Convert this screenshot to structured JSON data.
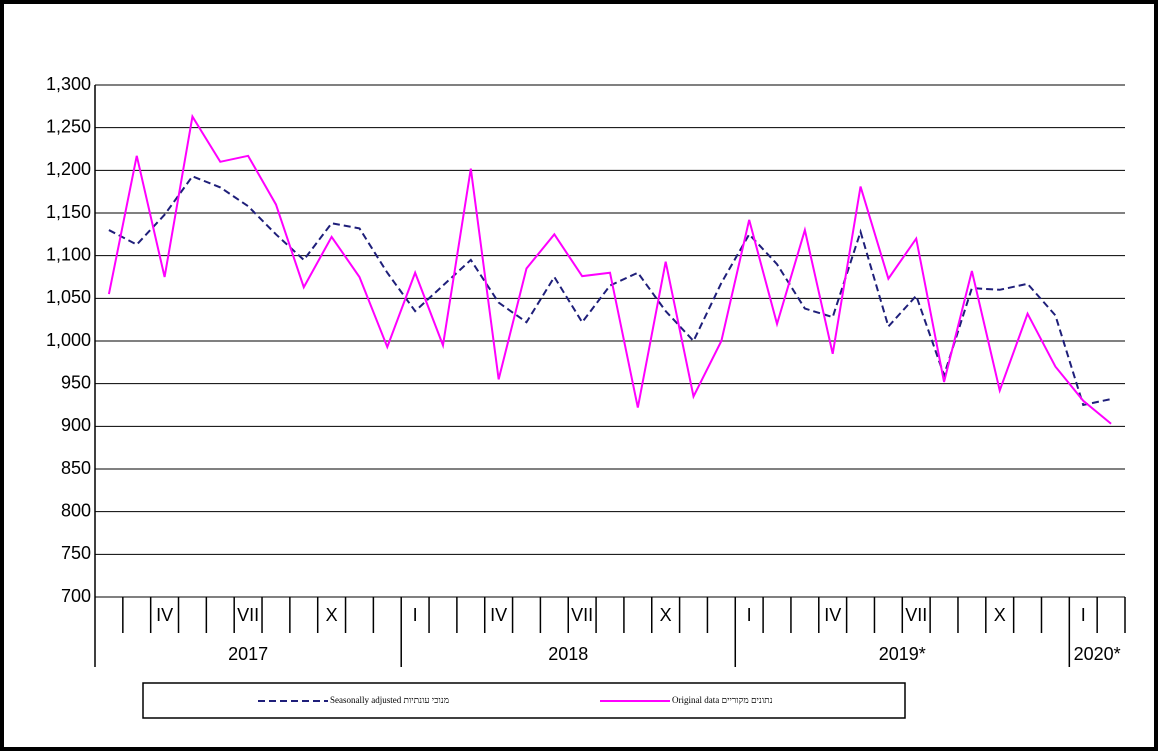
{
  "chart_data": {
    "type": "line",
    "categories": [
      null,
      null,
      "IV",
      null,
      null,
      "VII",
      null,
      null,
      "X",
      null,
      null,
      "I",
      null,
      null,
      "IV",
      null,
      null,
      "VII",
      null,
      null,
      "X",
      null,
      null,
      "I",
      null,
      null,
      "IV",
      null,
      null,
      "VII",
      null,
      null,
      "X",
      null,
      null,
      "I",
      null
    ],
    "years": [
      "2017",
      "2018",
      "2019*",
      "2020*"
    ],
    "series": [
      {
        "name": "Seasonally adjusted מנוכי עונתיות",
        "color": "#1f1f7a",
        "dash": true,
        "values": [
          1130,
          1113,
          1148,
          1193,
          1180,
          1158,
          1125,
          1095,
          1138,
          1132,
          1080,
          1035,
          1065,
          1095,
          1045,
          1022,
          1075,
          1022,
          1065,
          1080,
          1035,
          1000,
          1068,
          1125,
          1090,
          1038,
          1028,
          1128,
          1017,
          1053,
          960,
          1062,
          1060,
          1067,
          1030,
          925,
          932
        ]
      },
      {
        "name": "Original data נתונים מקוריים",
        "color": "#ff00ff",
        "dash": false,
        "values": [
          1055,
          1217,
          1075,
          1263,
          1210,
          1217,
          1160,
          1063,
          1122,
          1075,
          993,
          1080,
          995,
          1202,
          955,
          1085,
          1125,
          1076,
          1080,
          922,
          1093,
          935,
          1000,
          1142,
          1020,
          1130,
          985,
          1181,
          1073,
          1120,
          952,
          1082,
          942,
          1032,
          970,
          930,
          903
        ]
      }
    ],
    "ylim": [
      700,
      1300
    ],
    "yticks": [
      700,
      750,
      800,
      850,
      900,
      950,
      {
        "value": 1000,
        "label": "1,000"
      },
      {
        "value": 1050,
        "label": "1,050"
      },
      {
        "value": 1100,
        "label": "1,100"
      },
      {
        "value": 1150,
        "label": "1,150"
      },
      {
        "value": 1200,
        "label": "1,200"
      },
      {
        "value": 1250,
        "label": "1,250"
      },
      {
        "value": 1300,
        "label": "1,300"
      }
    ],
    "grid": true
  }
}
